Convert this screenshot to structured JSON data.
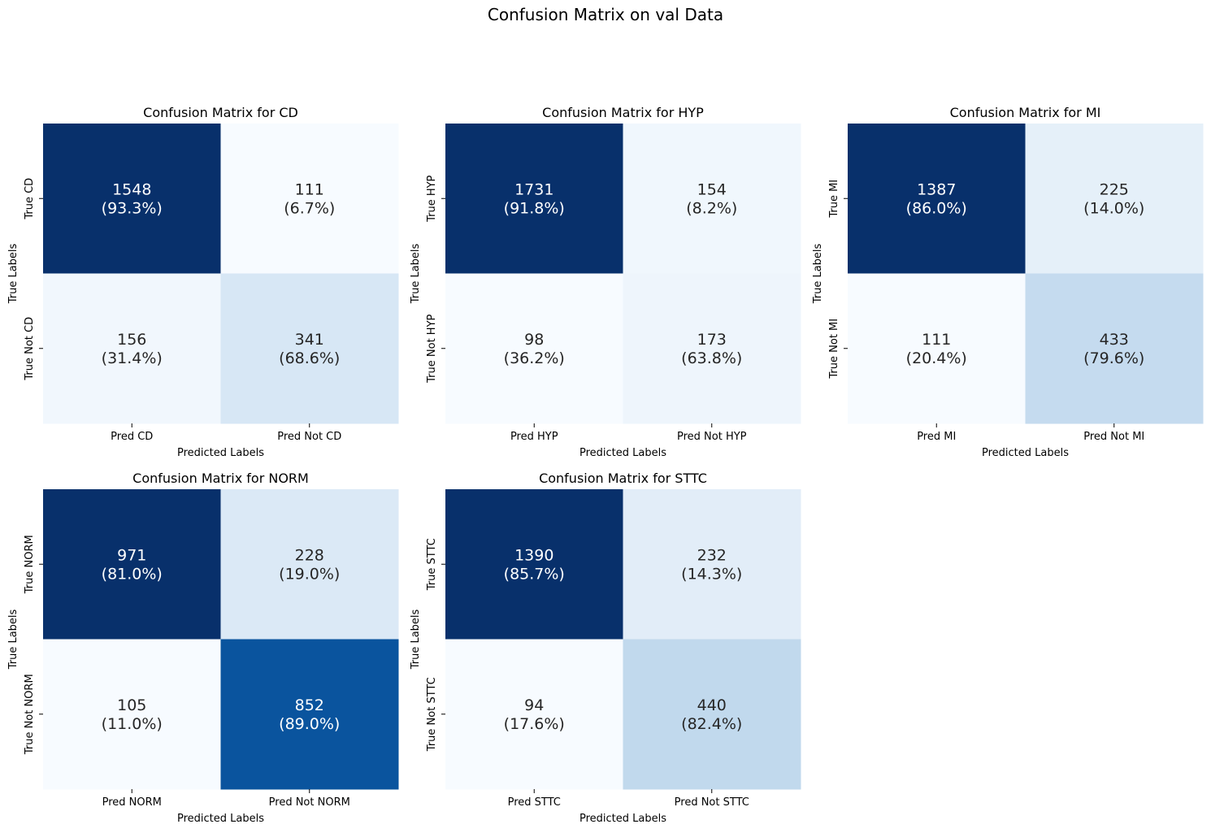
{
  "suptitle": "Confusion Matrix on val Data",
  "colors": {
    "cmap_low": "#f7fbff",
    "cmap_high": "#08306b",
    "text_light": "#ffffff",
    "text_dark": "#262626"
  },
  "chart_data": [
    {
      "type": "heatmap",
      "title": "Confusion Matrix for CD",
      "xlabel": "Predicted Labels",
      "ylabel": "True Labels",
      "x_categories": [
        "Pred CD",
        "Pred Not CD"
      ],
      "y_categories": [
        "True CD",
        "True Not CD"
      ],
      "values": [
        [
          1548,
          111
        ],
        [
          156,
          341
        ]
      ],
      "percents": [
        [
          "93.3%",
          "6.7%"
        ],
        [
          "31.4%",
          "68.6%"
        ]
      ]
    },
    {
      "type": "heatmap",
      "title": "Confusion Matrix for HYP",
      "xlabel": "Predicted Labels",
      "ylabel": "True Labels",
      "x_categories": [
        "Pred HYP",
        "Pred Not HYP"
      ],
      "y_categories": [
        "True HYP",
        "True Not HYP"
      ],
      "values": [
        [
          1731,
          154
        ],
        [
          98,
          173
        ]
      ],
      "percents": [
        [
          "91.8%",
          "8.2%"
        ],
        [
          "36.2%",
          "63.8%"
        ]
      ]
    },
    {
      "type": "heatmap",
      "title": "Confusion Matrix for MI",
      "xlabel": "Predicted Labels",
      "ylabel": "True Labels",
      "x_categories": [
        "Pred MI",
        "Pred Not MI"
      ],
      "y_categories": [
        "True MI",
        "True Not MI"
      ],
      "values": [
        [
          1387,
          225
        ],
        [
          111,
          433
        ]
      ],
      "percents": [
        [
          "86.0%",
          "14.0%"
        ],
        [
          "20.4%",
          "79.6%"
        ]
      ]
    },
    {
      "type": "heatmap",
      "title": "Confusion Matrix for NORM",
      "xlabel": "Predicted Labels",
      "ylabel": "True Labels",
      "x_categories": [
        "Pred NORM",
        "Pred Not NORM"
      ],
      "y_categories": [
        "True NORM",
        "True Not NORM"
      ],
      "values": [
        [
          971,
          228
        ],
        [
          105,
          852
        ]
      ],
      "percents": [
        [
          "81.0%",
          "19.0%"
        ],
        [
          "11.0%",
          "89.0%"
        ]
      ]
    },
    {
      "type": "heatmap",
      "title": "Confusion Matrix for STTC",
      "xlabel": "Predicted Labels",
      "ylabel": "True Labels",
      "x_categories": [
        "Pred STTC",
        "Pred Not STTC"
      ],
      "y_categories": [
        "True STTC",
        "True Not STTC"
      ],
      "values": [
        [
          1390,
          232
        ],
        [
          94,
          440
        ]
      ],
      "percents": [
        [
          "85.7%",
          "14.3%"
        ],
        [
          "17.6%",
          "82.4%"
        ]
      ]
    }
  ]
}
